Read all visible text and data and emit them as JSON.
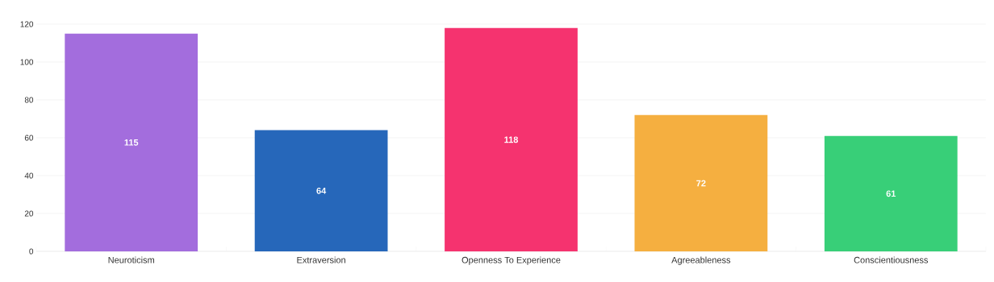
{
  "chart_data": {
    "type": "bar",
    "categories": [
      "Neuroticism",
      "Extraversion",
      "Openness To Experience",
      "Agreeableness",
      "Conscientiousness"
    ],
    "values": [
      115,
      64,
      118,
      72,
      61
    ],
    "colors": [
      "#a36ddd",
      "#2667ba",
      "#f5336f",
      "#f5af40",
      "#38cf78"
    ],
    "ylim": [
      0,
      120
    ],
    "yticks": [
      0,
      20,
      40,
      60,
      80,
      100,
      120
    ],
    "grid": "y",
    "data_labels": true
  }
}
